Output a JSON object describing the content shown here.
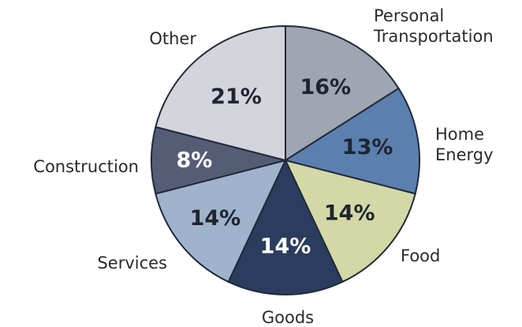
{
  "chart_data": {
    "type": "pie",
    "title": "",
    "slices": [
      {
        "label": "Personal Transportation",
        "label_lines": [
          "Personal",
          "Transportation"
        ],
        "value": 16,
        "display": "16%",
        "color": "#a0a5b2",
        "text_color": "#1e2530"
      },
      {
        "label": "Home Energy",
        "label_lines": [
          "Home",
          "Energy"
        ],
        "value": 13,
        "display": "13%",
        "color": "#5b7fae",
        "text_color": "#1e2530"
      },
      {
        "label": "Food",
        "label_lines": [
          "Food"
        ],
        "value": 14,
        "display": "14%",
        "color": "#d3d8a6",
        "text_color": "#1e2530"
      },
      {
        "label": "Goods",
        "label_lines": [
          "Goods"
        ],
        "value": 14,
        "display": "14%",
        "color": "#2b3c5e",
        "text_color": "#ffffff"
      },
      {
        "label": "Services",
        "label_lines": [
          "Services"
        ],
        "value": 14,
        "display": "14%",
        "color": "#9fb3cc",
        "text_color": "#1e2530"
      },
      {
        "label": "Construction",
        "label_lines": [
          "Construction"
        ],
        "value": 8,
        "display": "8%",
        "color": "#575c76",
        "text_color": "#ffffff"
      },
      {
        "label": "Other",
        "label_lines": [
          "Other"
        ],
        "value": 21,
        "display": "21%",
        "color": "#d3d4dc",
        "text_color": "#1e2530"
      }
    ],
    "legend": "none",
    "start_angle": "top, clockwise"
  }
}
